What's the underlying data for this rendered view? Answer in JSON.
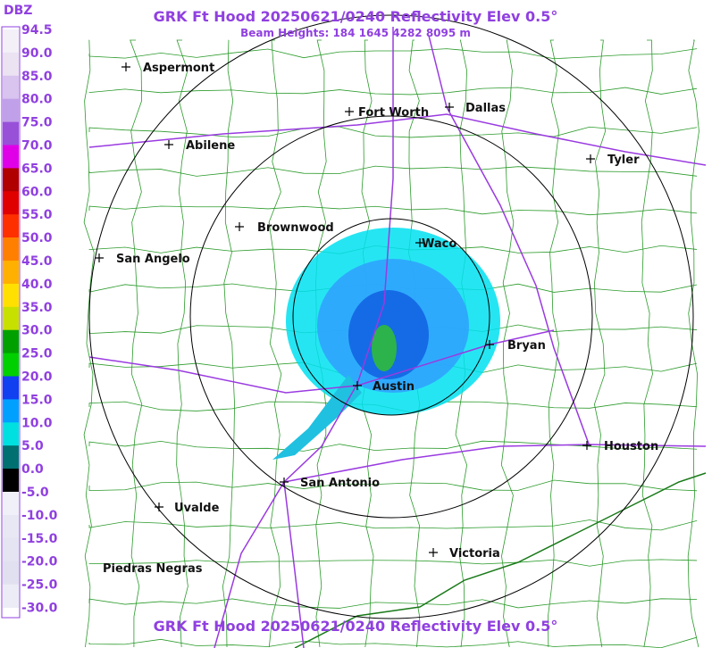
{
  "header": {
    "title": "GRK Ft Hood 20250621/0240 Reflectivity Elev 0.5°",
    "subtitle": "Beam Heights: 184 1645 4282 8095 m"
  },
  "footer": {
    "title": "GRK Ft Hood 20250621/0240 Reflectivity Elev 0.5°"
  },
  "legend": {
    "unit": "DBZ",
    "labels": [
      "94.5",
      "90.0",
      "85.0",
      "80.0",
      "75.0",
      "70.0",
      "65.0",
      "60.0",
      "55.0",
      "50.0",
      "45.0",
      "40.0",
      "35.0",
      "30.0",
      "25.0",
      "20.0",
      "15.0",
      "10.0",
      "5.0",
      "0.0",
      "-5.0",
      "-10.0",
      "-15.0",
      "-20.0",
      "-25.0",
      "-30.0"
    ]
  },
  "cities": [
    "Aspermont",
    "Fort Worth",
    "Dallas",
    "Abilene",
    "Tyler",
    "Brownwood",
    "Waco",
    "San Angelo",
    "Bryan",
    "Austin",
    "Houston",
    "San Antonio",
    "Uvalde",
    "Victoria",
    "Piedras Negras"
  ]
}
